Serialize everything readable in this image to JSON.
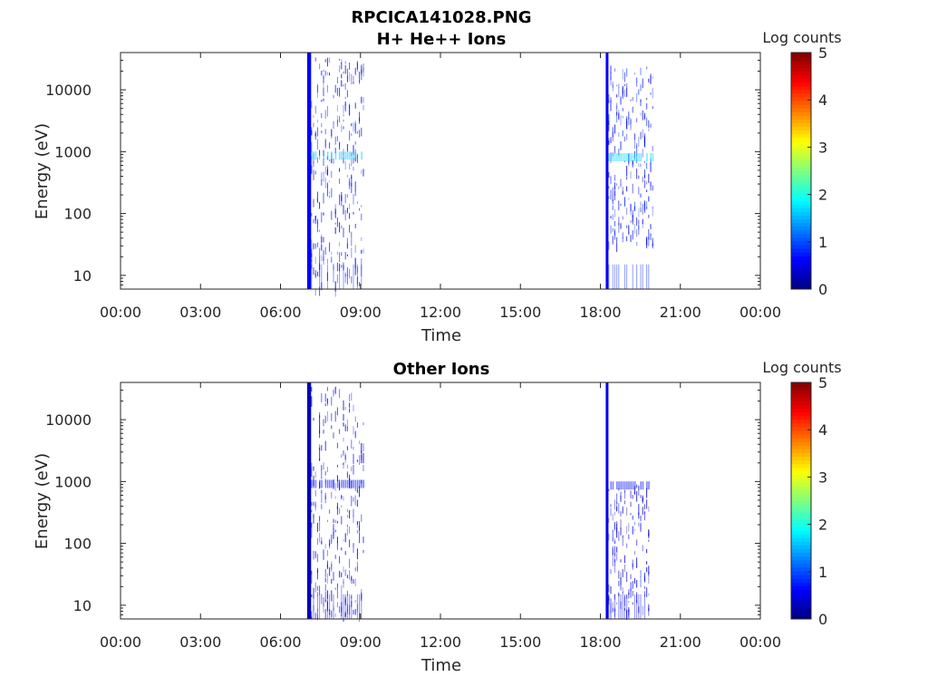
{
  "figure": {
    "title": "RPCICA141028.PNG"
  },
  "colormap": {
    "name": "jet",
    "stops": [
      "#00007f",
      "#0000ff",
      "#007fff",
      "#00ffff",
      "#7fff7f",
      "#ffff00",
      "#ff7f00",
      "#ff0000",
      "#7f0000"
    ]
  },
  "chart_data": [
    {
      "type": "heatmap",
      "title": "H+ He++ Ions",
      "xlabel": "Time",
      "ylabel": "Energy (eV)",
      "xlim_hours": [
        0,
        24
      ],
      "x_ticks": [
        "00:00",
        "03:00",
        "06:00",
        "09:00",
        "12:00",
        "15:00",
        "18:00",
        "21:00",
        "00:00"
      ],
      "y_scale": "log",
      "ylim": [
        6,
        40000
      ],
      "y_ticks": [
        "10",
        "100",
        "1000",
        "10000"
      ],
      "colorbar": {
        "label": "Log counts",
        "ticks": [
          "0",
          "1",
          "2",
          "3",
          "4",
          "5"
        ],
        "range": [
          0,
          5
        ]
      },
      "events": [
        {
          "start_hours": 7.0,
          "end_hours": 7.15,
          "log_counts": 0.6
        },
        {
          "start_hours": 18.2,
          "end_hours": 18.3,
          "log_counts": 0.6
        }
      ],
      "activity": [
        {
          "start_hours": 7.15,
          "end_hours": 9.1,
          "energy_range": [
            6,
            35000
          ],
          "log_counts": 0.8,
          "band_energy": 850,
          "band_log_counts": 1.6
        },
        {
          "start_hours": 18.3,
          "end_hours": 20.0,
          "energy_range": [
            30,
            25000
          ],
          "log_counts": 0.8,
          "band_energy": 800,
          "band_log_counts": 1.7
        }
      ]
    },
    {
      "type": "heatmap",
      "title": "Other Ions",
      "xlabel": "Time",
      "ylabel": "Energy (eV)",
      "xlim_hours": [
        0,
        24
      ],
      "x_ticks": [
        "00:00",
        "03:00",
        "06:00",
        "09:00",
        "12:00",
        "15:00",
        "18:00",
        "21:00",
        "00:00"
      ],
      "y_scale": "log",
      "ylim": [
        6,
        40000
      ],
      "y_ticks": [
        "10",
        "100",
        "1000",
        "10000"
      ],
      "colorbar": {
        "label": "Log counts",
        "ticks": [
          "0",
          "1",
          "2",
          "3",
          "4",
          "5"
        ],
        "range": [
          0,
          5
        ]
      },
      "events": [
        {
          "start_hours": 7.0,
          "end_hours": 7.15,
          "log_counts": 0.3
        },
        {
          "start_hours": 18.2,
          "end_hours": 18.3,
          "log_counts": 0.5
        }
      ],
      "activity": [
        {
          "start_hours": 7.15,
          "end_hours": 9.1,
          "energy_range": [
            6,
            35000
          ],
          "log_counts": 0.6,
          "band_energy": 900,
          "band_log_counts": 0.7
        },
        {
          "start_hours": 18.3,
          "end_hours": 19.8,
          "energy_range": [
            8,
            1000
          ],
          "log_counts": 0.6,
          "band_energy": 850,
          "band_log_counts": 0.7
        }
      ]
    }
  ]
}
